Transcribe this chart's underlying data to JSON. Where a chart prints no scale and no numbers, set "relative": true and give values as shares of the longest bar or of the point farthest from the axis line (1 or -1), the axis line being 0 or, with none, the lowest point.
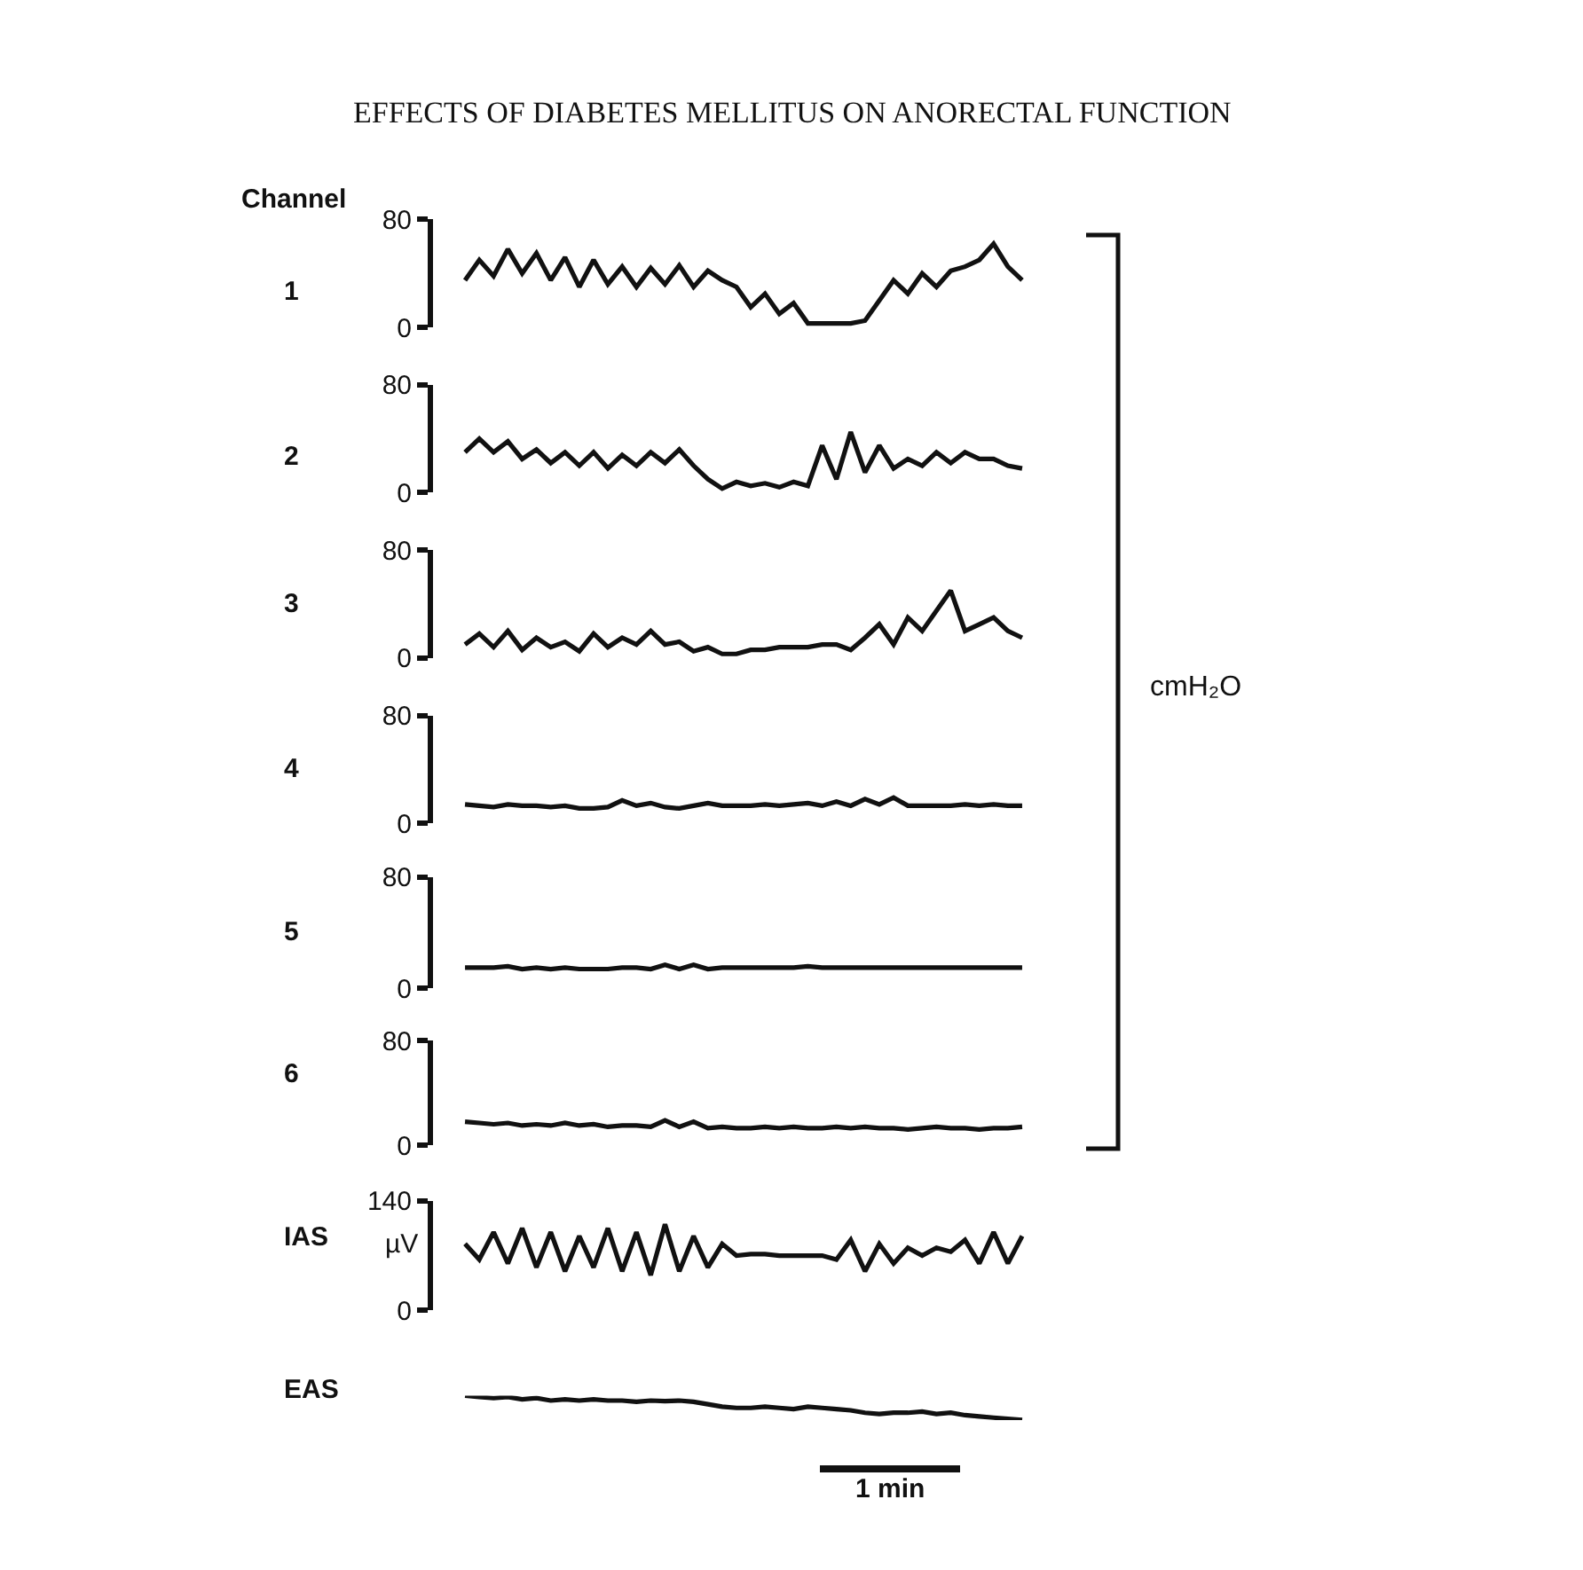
{
  "chart_data": [
    {
      "type": "line",
      "title": "EFFECTS OF DIABETES MELLITUS ON ANORECTAL FUNCTION",
      "ylabel": "1",
      "annotations": [
        "Channel",
        "cmH₂O"
      ],
      "categories": [
        null,
        null,
        null,
        null,
        null,
        null,
        null,
        null,
        null,
        null,
        null,
        null,
        null,
        null,
        null,
        null,
        null,
        null,
        null,
        null,
        null,
        null,
        null,
        null,
        null,
        null,
        null,
        null,
        null,
        null,
        null,
        null,
        null,
        null,
        null,
        null,
        null,
        null,
        null,
        null
      ],
      "series": [
        {
          "color": "#111111",
          "values": [
            35,
            50,
            38,
            58,
            40,
            55,
            35,
            52,
            30,
            50,
            32,
            45,
            30,
            44,
            32,
            46,
            30,
            42,
            35,
            30,
            15,
            25,
            10,
            18,
            3,
            3,
            3,
            3,
            5,
            20,
            35,
            25,
            40,
            30,
            42,
            45,
            50,
            62,
            45,
            35
          ]
        }
      ],
      "ylim": [
        0,
        80
      ],
      "yticks": [
        0,
        80
      ],
      "tick_labels": "y"
    },
    {
      "type": "line",
      "ylabel": "2",
      "categories": [
        null,
        null,
        null,
        null,
        null,
        null,
        null,
        null,
        null,
        null,
        null,
        null,
        null,
        null,
        null,
        null,
        null,
        null,
        null,
        null,
        null,
        null,
        null,
        null,
        null,
        null,
        null,
        null,
        null,
        null,
        null,
        null,
        null,
        null,
        null,
        null,
        null,
        null,
        null,
        null
      ],
      "series": [
        {
          "color": "#111111",
          "values": [
            30,
            40,
            30,
            38,
            25,
            32,
            22,
            30,
            20,
            30,
            18,
            28,
            20,
            30,
            22,
            32,
            20,
            10,
            3,
            8,
            5,
            7,
            4,
            8,
            5,
            35,
            10,
            45,
            15,
            35,
            18,
            25,
            20,
            30,
            22,
            30,
            25,
            25,
            20,
            18
          ]
        }
      ],
      "ylim": [
        0,
        80
      ],
      "yticks": [
        0,
        80
      ],
      "tick_labels": "y"
    },
    {
      "type": "line",
      "ylabel": "3",
      "categories": [
        null,
        null,
        null,
        null,
        null,
        null,
        null,
        null,
        null,
        null,
        null,
        null,
        null,
        null,
        null,
        null,
        null,
        null,
        null,
        null,
        null,
        null,
        null,
        null,
        null,
        null,
        null,
        null,
        null,
        null,
        null,
        null,
        null,
        null,
        null,
        null,
        null,
        null,
        null,
        null
      ],
      "series": [
        {
          "color": "#111111",
          "values": [
            10,
            18,
            8,
            20,
            6,
            15,
            8,
            12,
            5,
            18,
            8,
            15,
            10,
            20,
            10,
            12,
            5,
            8,
            3,
            3,
            6,
            6,
            8,
            8,
            8,
            10,
            10,
            6,
            15,
            25,
            10,
            30,
            20,
            35,
            50,
            20,
            25,
            30,
            20,
            15
          ]
        }
      ],
      "ylim": [
        0,
        80
      ],
      "yticks": [
        0,
        80
      ],
      "tick_labels": "y"
    },
    {
      "type": "line",
      "ylabel": "4",
      "categories": [
        null,
        null,
        null,
        null,
        null,
        null,
        null,
        null,
        null,
        null,
        null,
        null,
        null,
        null,
        null,
        null,
        null,
        null,
        null,
        null,
        null,
        null,
        null,
        null,
        null,
        null,
        null,
        null,
        null,
        null,
        null,
        null,
        null,
        null,
        null,
        null,
        null,
        null,
        null,
        null
      ],
      "series": [
        {
          "color": "#111111",
          "values": [
            14,
            13,
            12,
            14,
            13,
            13,
            12,
            13,
            11,
            11,
            12,
            17,
            13,
            15,
            12,
            11,
            13,
            15,
            13,
            13,
            13,
            14,
            13,
            14,
            15,
            13,
            16,
            13,
            18,
            14,
            19,
            13,
            13,
            13,
            13,
            14,
            13,
            14,
            13,
            13
          ]
        }
      ],
      "ylim": [
        0,
        80
      ],
      "yticks": [
        0,
        80
      ],
      "tick_labels": "y"
    },
    {
      "type": "line",
      "ylabel": "5",
      "categories": [
        null,
        null,
        null,
        null,
        null,
        null,
        null,
        null,
        null,
        null,
        null,
        null,
        null,
        null,
        null,
        null,
        null,
        null,
        null,
        null,
        null,
        null,
        null,
        null,
        null,
        null,
        null,
        null,
        null,
        null,
        null,
        null,
        null,
        null,
        null,
        null,
        null,
        null,
        null,
        null
      ],
      "series": [
        {
          "color": "#111111",
          "values": [
            15,
            15,
            15,
            16,
            14,
            15,
            14,
            15,
            14,
            14,
            14,
            15,
            15,
            14,
            17,
            14,
            17,
            14,
            15,
            15,
            15,
            15,
            15,
            15,
            16,
            15,
            15,
            15,
            15,
            15,
            15,
            15,
            15,
            15,
            15,
            15,
            15,
            15,
            15,
            15
          ]
        }
      ],
      "ylim": [
        0,
        80
      ],
      "yticks": [
        0,
        80
      ],
      "tick_labels": "y"
    },
    {
      "type": "line",
      "ylabel": "6",
      "categories": [
        null,
        null,
        null,
        null,
        null,
        null,
        null,
        null,
        null,
        null,
        null,
        null,
        null,
        null,
        null,
        null,
        null,
        null,
        null,
        null,
        null,
        null,
        null,
        null,
        null,
        null,
        null,
        null,
        null,
        null,
        null,
        null,
        null,
        null,
        null,
        null,
        null,
        null,
        null,
        null
      ],
      "series": [
        {
          "color": "#111111",
          "values": [
            18,
            17,
            16,
            17,
            15,
            16,
            15,
            17,
            15,
            16,
            14,
            15,
            15,
            14,
            19,
            14,
            18,
            13,
            14,
            13,
            13,
            14,
            13,
            14,
            13,
            13,
            14,
            13,
            14,
            13,
            13,
            12,
            13,
            14,
            13,
            13,
            12,
            13,
            13,
            14
          ]
        }
      ],
      "ylim": [
        0,
        80
      ],
      "yticks": [
        0,
        80
      ],
      "tick_labels": "y"
    },
    {
      "type": "line",
      "ylabel": "IAS",
      "annotations": [
        "µV"
      ],
      "categories": [
        null,
        null,
        null,
        null,
        null,
        null,
        null,
        null,
        null,
        null,
        null,
        null,
        null,
        null,
        null,
        null,
        null,
        null,
        null,
        null,
        null,
        null,
        null,
        null,
        null,
        null,
        null,
        null,
        null,
        null,
        null,
        null,
        null,
        null,
        null,
        null,
        null,
        null,
        null,
        null
      ],
      "series": [
        {
          "color": "#111111",
          "values": [
            85,
            65,
            100,
            60,
            105,
            55,
            100,
            50,
            95,
            55,
            105,
            50,
            100,
            45,
            110,
            50,
            95,
            55,
            85,
            70,
            72,
            72,
            70,
            70,
            70,
            70,
            65,
            90,
            50,
            85,
            60,
            80,
            70,
            80,
            75,
            90,
            60,
            100,
            60,
            95
          ]
        }
      ],
      "ylim": [
        0,
        140
      ],
      "yticks": [
        0,
        140
      ],
      "tick_labels": "y"
    },
    {
      "type": "line",
      "ylabel": "EAS",
      "annotations": [
        "1 min"
      ],
      "relative": true,
      "categories": [
        null,
        null,
        null,
        null,
        null,
        null,
        null,
        null,
        null,
        null,
        null,
        null,
        null,
        null,
        null,
        null,
        null,
        null,
        null,
        null,
        null,
        null,
        null,
        null,
        null,
        null,
        null,
        null,
        null,
        null,
        null,
        null,
        null,
        null,
        null,
        null,
        null,
        null,
        null,
        null
      ],
      "series": [
        {
          "color": "#111111",
          "values": [
            1,
            0.95,
            0.9,
            0.95,
            0.85,
            0.9,
            0.8,
            0.85,
            0.8,
            0.85,
            0.8,
            0.8,
            0.75,
            0.8,
            0.78,
            0.8,
            0.75,
            0.65,
            0.55,
            0.5,
            0.5,
            0.55,
            0.5,
            0.45,
            0.55,
            0.5,
            0.45,
            0.4,
            0.3,
            0.25,
            0.3,
            0.3,
            0.35,
            0.25,
            0.3,
            0.2,
            0.15,
            0.1,
            0.05,
            0
          ]
        }
      ],
      "tick_labels": false
    }
  ]
}
